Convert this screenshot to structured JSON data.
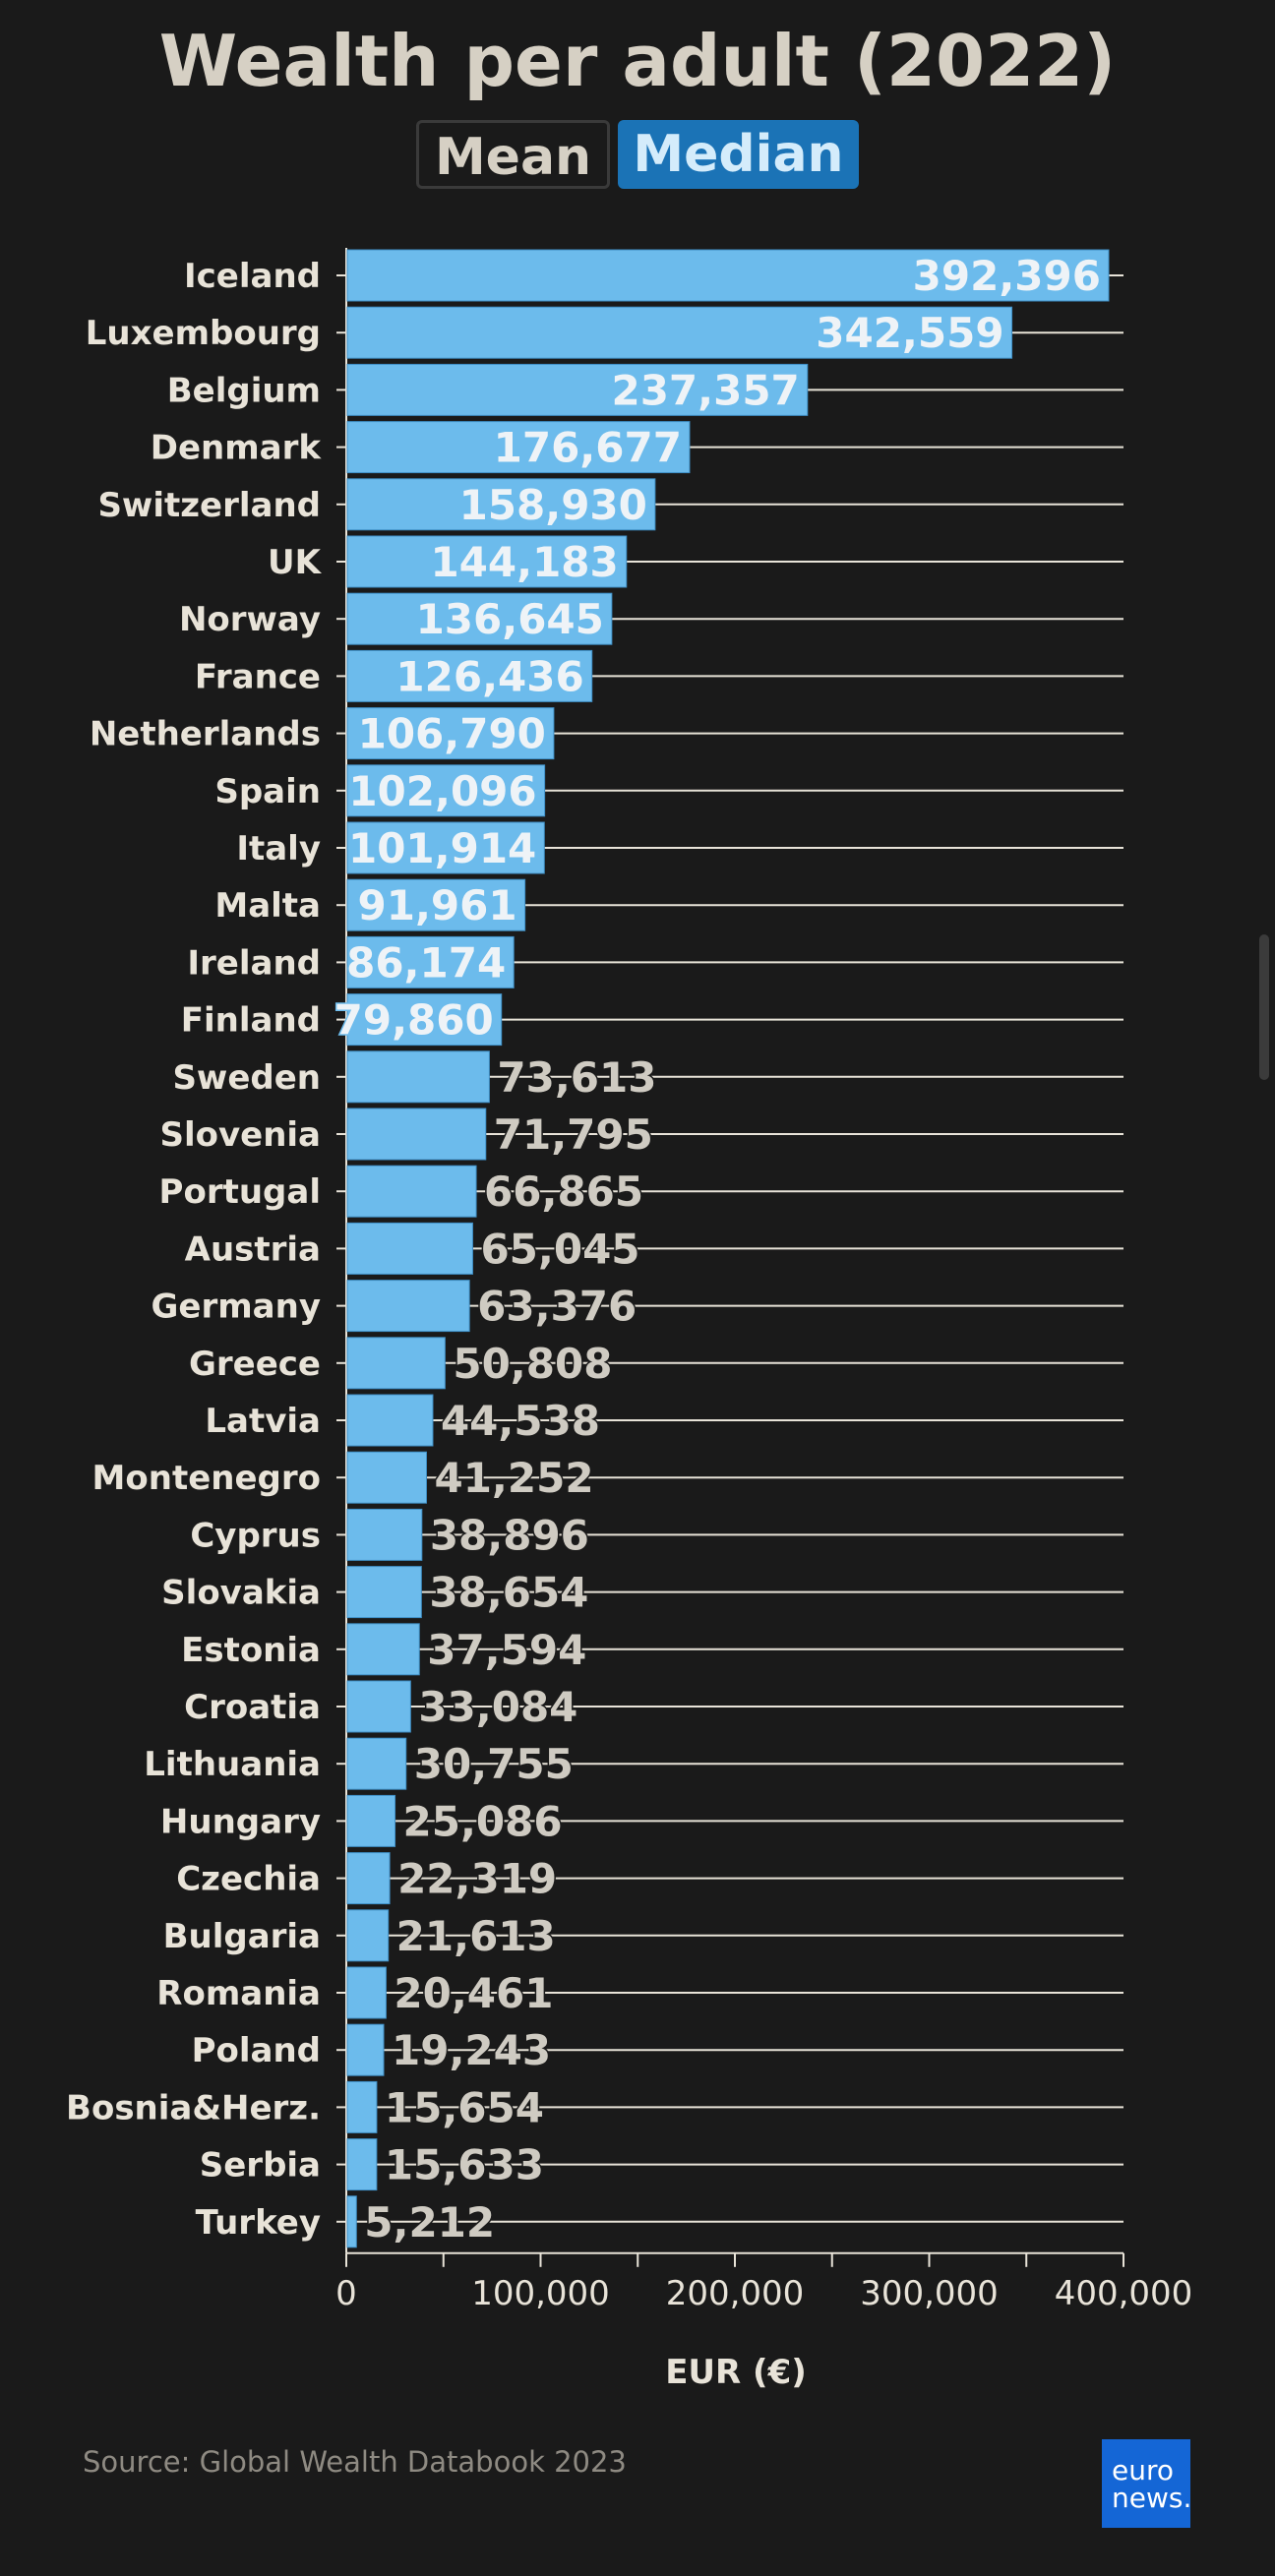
{
  "title": "Wealth per adult (2022)",
  "toggle": {
    "mean_label": "Mean",
    "median_label": "Median",
    "selected": "Median"
  },
  "chart_data": {
    "type": "bar",
    "orientation": "horizontal",
    "categories": [
      "Iceland",
      "Luxembourg",
      "Belgium",
      "Denmark",
      "Switzerland",
      "UK",
      "Norway",
      "France",
      "Netherlands",
      "Spain",
      "Italy",
      "Malta",
      "Ireland",
      "Finland",
      "Sweden",
      "Slovenia",
      "Portugal",
      "Austria",
      "Germany",
      "Greece",
      "Latvia",
      "Montenegro",
      "Cyprus",
      "Slovakia",
      "Estonia",
      "Croatia",
      "Lithuania",
      "Hungary",
      "Czechia",
      "Bulgaria",
      "Romania",
      "Poland",
      "Bosnia&Herz.",
      "Serbia",
      "Turkey"
    ],
    "values": [
      392396,
      342559,
      237357,
      176677,
      158930,
      144183,
      136645,
      126436,
      106790,
      102096,
      101914,
      91961,
      86174,
      79860,
      73613,
      71795,
      66865,
      65045,
      63376,
      50808,
      44538,
      41252,
      38896,
      38654,
      37594,
      33084,
      30755,
      25086,
      22319,
      21613,
      20461,
      19243,
      15654,
      15633,
      5212
    ],
    "value_labels": [
      "392,396",
      "342,559",
      "237,357",
      "176,677",
      "158,930",
      "144,183",
      "136,645",
      "126,436",
      "106,790",
      "102,096",
      "101,914",
      "91,961",
      "86,174",
      "79,860",
      "73,613",
      "71,795",
      "66,865",
      "65,045",
      "63,376",
      "50,808",
      "44,538",
      "41,252",
      "38,896",
      "38,654",
      "37,594",
      "33,084",
      "30,755",
      "25,086",
      "22,319",
      "21,613",
      "20,461",
      "19,243",
      "15,654",
      "15,633",
      "5,212"
    ],
    "xlim": [
      0,
      400000
    ],
    "xticks": [
      0,
      100000,
      200000,
      300000,
      400000
    ],
    "xtick_labels": [
      "0",
      "100,000",
      "200,000",
      "300,000",
      "400,000"
    ],
    "xlabel": "EUR (€)",
    "grid": true,
    "bar_color": "#6cbbec"
  },
  "source": "Source: Global Wealth Databook 2023",
  "logo": {
    "line1": "euro",
    "line2": "news."
  }
}
